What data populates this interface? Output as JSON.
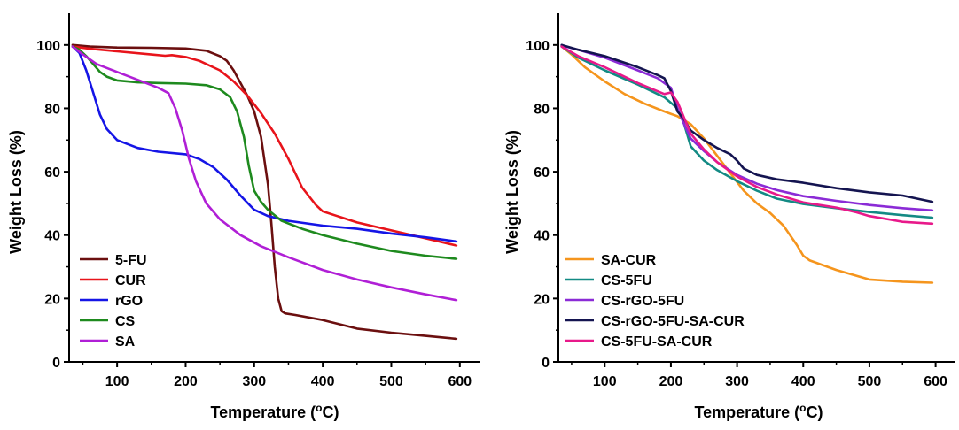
{
  "chart_data": [
    {
      "type": "line",
      "xlabel": "Temperature (",
      "xlabel_unit_sup": "o",
      "xlabel_unit_end": "C)",
      "ylabel": "Weight Loss  (%)",
      "xlim": [
        30,
        630
      ],
      "ylim": [
        0,
        110
      ],
      "xticks": [
        100,
        200,
        300,
        400,
        500,
        600
      ],
      "yticks": [
        0,
        20,
        40,
        60,
        80,
        100
      ],
      "grid": false,
      "legend_position": "bottom-left",
      "series": [
        {
          "name": "5-FU",
          "color": "#6b0f0f",
          "x": [
            35,
            60,
            100,
            150,
            200,
            230,
            250,
            260,
            270,
            280,
            290,
            300,
            310,
            320,
            325,
            330,
            335,
            340,
            345,
            360,
            400,
            450,
            500,
            550,
            595
          ],
          "y": [
            100,
            99.5,
            99.2,
            99.1,
            98.9,
            98.2,
            96.5,
            95,
            92,
            88,
            84,
            79,
            71,
            56,
            44,
            30,
            20,
            16,
            15.3,
            14.8,
            13.2,
            10.5,
            9.2,
            8.2,
            7.3
          ]
        },
        {
          "name": "CUR",
          "color": "#e8141b",
          "x": [
            35,
            60,
            100,
            150,
            170,
            180,
            200,
            220,
            250,
            270,
            290,
            310,
            330,
            350,
            370,
            390,
            400,
            450,
            500,
            550,
            595
          ],
          "y": [
            99.5,
            98.8,
            98,
            97,
            96.6,
            96.8,
            96.2,
            95,
            92,
            88.5,
            84,
            78.5,
            72,
            64,
            55,
            49.5,
            47.5,
            44,
            41.5,
            39,
            36.7
          ]
        },
        {
          "name": "rGO",
          "color": "#1515e6",
          "x": [
            35,
            45,
            55,
            65,
            75,
            85,
            100,
            130,
            160,
            200,
            220,
            240,
            260,
            280,
            300,
            320,
            350,
            400,
            450,
            500,
            550,
            595
          ],
          "y": [
            99.5,
            97.5,
            92,
            85,
            78,
            73.5,
            70,
            67.5,
            66.3,
            65.5,
            64,
            61.5,
            57.5,
            52.5,
            48,
            46,
            44.5,
            43,
            42,
            40.5,
            39.3,
            38
          ]
        },
        {
          "name": "CS",
          "color": "#1e8a1e",
          "x": [
            35,
            45,
            55,
            65,
            75,
            85,
            100,
            130,
            160,
            200,
            230,
            250,
            265,
            275,
            285,
            292,
            300,
            310,
            320,
            340,
            370,
            400,
            450,
            500,
            550,
            595
          ],
          "y": [
            99.5,
            98.5,
            96.5,
            94,
            91.5,
            90,
            88.8,
            88.2,
            88,
            87.8,
            87.3,
            86,
            83.5,
            79,
            71,
            62,
            54,
            50.5,
            48,
            44.5,
            42,
            40,
            37.3,
            35,
            33.5,
            32.5
          ]
        },
        {
          "name": "SA",
          "color": "#b01fd6",
          "x": [
            35,
            50,
            70,
            100,
            130,
            160,
            175,
            185,
            195,
            205,
            215,
            230,
            250,
            280,
            310,
            350,
            400,
            450,
            500,
            550,
            595
          ],
          "y": [
            99.5,
            97,
            94,
            91.5,
            89,
            86.5,
            84.8,
            80,
            73,
            64,
            57,
            50,
            45,
            40,
            36.5,
            33,
            29,
            26,
            23.5,
            21.3,
            19.5
          ]
        }
      ]
    },
    {
      "type": "line",
      "xlabel": "Temperature (",
      "xlabel_unit_sup": "o",
      "xlabel_unit_end": "C)",
      "ylabel": "Weight Loss  (%)",
      "xlim": [
        30,
        630
      ],
      "ylim": [
        0,
        110
      ],
      "xticks": [
        100,
        200,
        300,
        400,
        500,
        600
      ],
      "yticks": [
        0,
        20,
        40,
        60,
        80,
        100
      ],
      "grid": false,
      "legend_position": "bottom-left",
      "series": [
        {
          "name": "SA-CUR",
          "color": "#f5951d",
          "x": [
            35,
            50,
            70,
            100,
            130,
            160,
            190,
            210,
            230,
            250,
            270,
            290,
            310,
            330,
            350,
            370,
            390,
            400,
            410,
            450,
            500,
            550,
            595
          ],
          "y": [
            99.5,
            97,
            93,
            88.5,
            84.5,
            81.5,
            79,
            77.5,
            75,
            70.5,
            65,
            59.5,
            54,
            50,
            47,
            43,
            37,
            33.5,
            32,
            29,
            26,
            25.3,
            25
          ]
        },
        {
          "name": "CS-5FU",
          "color": "#138a84",
          "x": [
            35,
            60,
            100,
            150,
            190,
            210,
            220,
            230,
            250,
            270,
            300,
            330,
            360,
            400,
            450,
            500,
            550,
            595
          ],
          "y": [
            99.5,
            96,
            92,
            87.5,
            83.5,
            80,
            75,
            68,
            63.5,
            60.5,
            57,
            54,
            51.5,
            49.8,
            48.5,
            47.3,
            46.3,
            45.5
          ]
        },
        {
          "name": "CS-rGO-5FU",
          "color": "#8b2bd6",
          "x": [
            35,
            60,
            100,
            150,
            180,
            200,
            210,
            220,
            230,
            250,
            270,
            300,
            330,
            360,
            400,
            450,
            500,
            550,
            595
          ],
          "y": [
            99.8,
            98.5,
            96,
            92,
            89.5,
            86.5,
            80,
            75,
            70.5,
            66.5,
            63,
            59,
            56.2,
            54.2,
            52.3,
            50.8,
            49.5,
            48.5,
            47.8
          ]
        },
        {
          "name": "CS-rGO-5FU-SA-CUR",
          "color": "#141450",
          "x": [
            35,
            60,
            100,
            150,
            180,
            190,
            200,
            210,
            220,
            230,
            250,
            270,
            290,
            300,
            310,
            330,
            360,
            400,
            450,
            500,
            550,
            595
          ],
          "y": [
            100,
            98.5,
            96.5,
            93,
            90.5,
            89.5,
            85.5,
            79,
            76.5,
            73,
            70,
            67.5,
            65.5,
            63.5,
            61,
            59,
            57.6,
            56.5,
            54.8,
            53.5,
            52.5,
            50.5
          ]
        },
        {
          "name": "CS-5FU-SA-CUR",
          "color": "#e8198a",
          "x": [
            35,
            60,
            100,
            150,
            190,
            200,
            210,
            220,
            230,
            250,
            270,
            300,
            330,
            360,
            400,
            450,
            480,
            500,
            550,
            595
          ],
          "y": [
            99.5,
            96.5,
            93,
            88,
            84.5,
            85,
            82,
            77,
            72,
            67,
            63,
            58.5,
            55.2,
            52.8,
            50.3,
            48.7,
            47.2,
            46,
            44.2,
            43.6
          ]
        }
      ]
    }
  ]
}
